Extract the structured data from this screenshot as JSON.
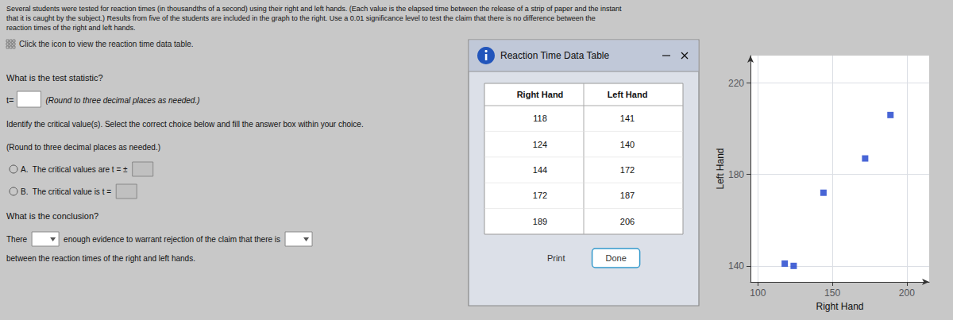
{
  "chart_data": {
    "type": "scatter",
    "x": [
      118,
      124,
      144,
      172,
      189
    ],
    "values": [
      141,
      140,
      172,
      187,
      206
    ],
    "xlabel": "Right Hand",
    "ylabel": "Left Hand",
    "xlim": [
      95,
      215
    ],
    "ylim": [
      133,
      232
    ],
    "xticks": [
      100,
      150,
      200
    ],
    "yticks": [
      140,
      180,
      220
    ],
    "grid": true,
    "color": "#1a3fcc",
    "marker": "square",
    "annotations": [
      "Several students were tested for reaction times (in thousandths of a second) using their right and left hands. (Each value is the elapsed time between the release of a strip of paper and the instant",
      "that it is caught by the subject.) Results from five of the students are included in the graph to the right. Use a 0.01 significance level to test the claim that there is no difference between the",
      "reaction times of the right and left hands.",
      "Click the icon to view the reaction time data table.",
      "What is the test statistic?",
      "t=",
      "(Round to three decimal places as needed.)",
      "Identify the critical value(s). Select the correct choice below and fill the answer box within your choice.",
      "(Round to three decimal places as needed.)",
      "A.  The critical values are t = ±",
      "B.  The critical value is t =",
      "What is the conclusion?",
      "There",
      "enough evidence to warrant rejection of the claim that there is",
      "between the reaction times of the right and left hands.",
      "Reaction Time Data Table",
      "Print",
      "Done"
    ]
  }
}
